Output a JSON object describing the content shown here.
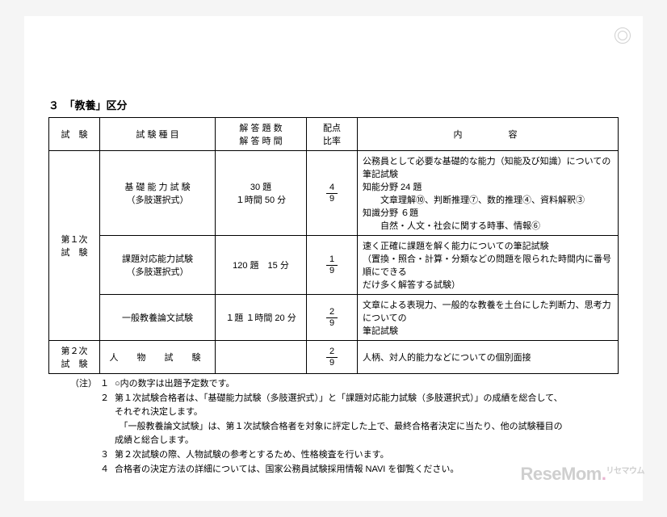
{
  "heading": "３　「教養」区分",
  "table": {
    "headers": {
      "shiken": "試　験",
      "type": "試 験 種 目",
      "count": "解 答 題 数\n解 答 時 間",
      "ratio": "配点\n比率",
      "content": "内　　　容"
    },
    "group1_label": "第１次\n試　験",
    "group2_label": "第２次\n試　験",
    "rows": [
      {
        "type": "基 礎 能 力 試 験\n（多肢選択式）",
        "count": "30 題\n１時間 50 分",
        "ratio_num": "4",
        "ratio_den": "9",
        "content_lines": [
          "公務員として必要な基礎的な能力（知能及び知識）についての筆記試験",
          "知能分野 24 題",
          "　　文章理解⑩、判断推理⑦、数的推理④、資料解釈③",
          "知識分野 ６題",
          "　　自然・人文・社会に関する時事、情報⑥"
        ]
      },
      {
        "type": "課題対応能力試験\n（多肢選択式）",
        "count": "120 題　15 分",
        "ratio_num": "1",
        "ratio_den": "9",
        "content_lines": [
          "速く正確に課題を解く能力についての筆記試験",
          "（置換・照合・計算・分類などの問題を限られた時間内に番号順にできる",
          "だけ多く解答する試験）"
        ]
      },
      {
        "type": "一般教養論文試験",
        "count": "１題 １時間 20 分",
        "ratio_num": "2",
        "ratio_den": "9",
        "content_lines": [
          "文章による表現力、一般的な教養を土台にした判断力、思考力についての",
          "筆記試験"
        ]
      },
      {
        "type": "人　物　試　験",
        "count": "",
        "ratio_num": "2",
        "ratio_den": "9",
        "content_lines": [
          "人柄、対人的能力などについての個別面接"
        ]
      }
    ]
  },
  "notes": {
    "label": "（注）",
    "items": [
      {
        "n": "１",
        "lines": [
          "○内の数字は出題予定数です。"
        ]
      },
      {
        "n": "２",
        "lines": [
          "第１次試験合格者は、「基礎能力試験（多肢選択式）」と「課題対応能力試験（多肢選択式）」の成績を総合して、",
          "それぞれ決定します。",
          "　「一般教養論文試験」は、第１次試験合格者を対象に評定した上で、最終合格者決定に当たり、他の試験種目の",
          "成績と総合します。"
        ]
      },
      {
        "n": "３",
        "lines": [
          "第２次試験の際、人物試験の参考とするため、性格検査を行います。"
        ]
      },
      {
        "n": "４",
        "lines": [
          "合格者の決定方法の詳細については、国家公務員試験採用情報 NAVI を御覧ください。"
        ]
      }
    ]
  },
  "watermark": {
    "text": "ReseMom",
    "suffix": "リセマウム"
  }
}
